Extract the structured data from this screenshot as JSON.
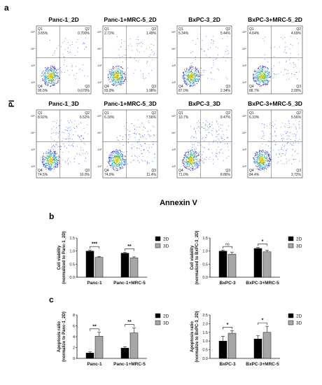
{
  "panel_letters": [
    "a",
    "b",
    "c"
  ],
  "panel_a": {
    "y_axis_label": "PI",
    "x_axis_label": "Annexin V",
    "plots": [
      {
        "title": "Panc-1_2D",
        "q1": "Q1",
        "q2": "Q2",
        "q3": "Q3",
        "q4": "Q4",
        "q1v": "3.65%",
        "q2v": "0.700%",
        "q3v": "0.670%",
        "q4v": "95.0%"
      },
      {
        "title": "Panc-1+MRC-5_2D",
        "q1": "Q1",
        "q2": "Q2",
        "q3": "Q3",
        "q4": "Q4",
        "q1v": "2.72%",
        "q2v": "1.49%",
        "q3v": "1.98%",
        "q4v": "93.8%"
      },
      {
        "title": "BxPC-3_2D",
        "q1": "Q1",
        "q2": "Q2",
        "q3": "Q3",
        "q4": "Q4",
        "q1v": "5.34%",
        "q2v": "5.44%",
        "q3v": "2.34%",
        "q4v": "87.0%"
      },
      {
        "title": "BxPC-3+MRC-5_2D",
        "q1": "Q1",
        "q2": "Q2",
        "q3": "Q3",
        "q4": "Q4",
        "q1v": "4.64%",
        "q2v": "4.69%",
        "q3v": "2.00%",
        "q4v": "88.7%"
      },
      {
        "title": "Panc-1_3D",
        "q1": "Q1",
        "q2": "Q2",
        "q3": "Q3",
        "q4": "Q4",
        "q1v": "8.92%",
        "q2v": "6.52%",
        "q3v": "10.0%",
        "q4v": "74.5%"
      },
      {
        "title": "Panc-1+MRC-5_3D",
        "q1": "Q1",
        "q2": "Q2",
        "q3": "Q3",
        "q4": "Q4",
        "q1v": "6.18%",
        "q2v": "7.56%",
        "q3v": "11.4%",
        "q4v": "74.8%"
      },
      {
        "title": "BxPC-3_3D",
        "q1": "Q1",
        "q2": "Q2",
        "q3": "Q3",
        "q4": "Q4",
        "q1v": "10.7%",
        "q2v": "9.47%",
        "q3v": "8.86%",
        "q4v": "71.0%"
      },
      {
        "title": "BxPC-3+MRC-5_3D",
        "q1": "Q1",
        "q2": "Q2",
        "q3": "Q3",
        "q4": "Q4",
        "q1v": "6.33%",
        "q2v": "5.56%",
        "q3v": "3.72%",
        "q4v": "84.4%"
      }
    ]
  },
  "chart_data": [
    {
      "type": "bar",
      "panel": "b",
      "ylabel_line1": "Cell viability",
      "ylabel_line2": "(normalized to Panc-1_2D)",
      "ylim": [
        0,
        1.5
      ],
      "yticks": [
        "0.0",
        "0.5",
        "1.0",
        "1.5"
      ],
      "categories": [
        "Panc-1",
        "Panc-1+MRC-5"
      ],
      "series": [
        {
          "name": "2D",
          "color": "#000000",
          "values": [
            1.0,
            0.92
          ],
          "errors": [
            0.04,
            0.03
          ]
        },
        {
          "name": "3D",
          "color": "#a6a6a6",
          "values": [
            0.76,
            0.74
          ],
          "errors": [
            0.03,
            0.04
          ]
        }
      ],
      "significance": [
        "***",
        "**"
      ],
      "legend_position": "top-right"
    },
    {
      "type": "bar",
      "panel": "b",
      "ylabel_line1": "Cell viability",
      "ylabel_line2": "(normalized to BxPC-3_2D)",
      "ylim": [
        0,
        1.5
      ],
      "yticks": [
        "0.0",
        "0.5",
        "1.0",
        "1.5"
      ],
      "categories": [
        "BxPC-3",
        "BxPC-3+MRC-5"
      ],
      "series": [
        {
          "name": "2D",
          "color": "#000000",
          "values": [
            1.0,
            1.1
          ],
          "errors": [
            0.04,
            0.04
          ]
        },
        {
          "name": "3D",
          "color": "#a6a6a6",
          "values": [
            0.88,
            0.97
          ],
          "errors": [
            0.08,
            0.06
          ]
        }
      ],
      "significance": [
        "ns",
        "*"
      ],
      "legend_position": "top-right"
    },
    {
      "type": "bar",
      "panel": "c",
      "ylabel_line1": "Apoptosis ratio",
      "ylabel_line2": "(normalize to Panc-1_2D)",
      "ylim": [
        0,
        8
      ],
      "yticks": [
        "0",
        "2",
        "4",
        "6",
        "8"
      ],
      "categories": [
        "Panc-1",
        "Panc-1+MRC-5"
      ],
      "series": [
        {
          "name": "2D",
          "color": "#000000",
          "values": [
            1.0,
            1.9
          ],
          "errors": [
            0.2,
            0.25
          ]
        },
        {
          "name": "3D",
          "color": "#a6a6a6",
          "values": [
            4.1,
            4.7
          ],
          "errors": [
            0.7,
            0.9
          ]
        }
      ],
      "significance": [
        "**",
        "**"
      ],
      "legend_position": "top-right"
    },
    {
      "type": "bar",
      "panel": "c",
      "ylabel_line1": "Apoptosis ratio",
      "ylabel_line2": "(normalize to BxPC-3_2D)",
      "ylim": [
        0,
        2.5
      ],
      "yticks": [
        "0.0",
        "0.5",
        "1.0",
        "1.5",
        "2.0",
        "2.5"
      ],
      "categories": [
        "BxPC-3",
        "BxPC-3+MRC-5"
      ],
      "series": [
        {
          "name": "2D",
          "color": "#000000",
          "values": [
            1.0,
            1.12
          ],
          "errors": [
            0.28,
            0.18
          ]
        },
        {
          "name": "3D",
          "color": "#a6a6a6",
          "values": [
            1.45,
            1.5
          ],
          "errors": [
            0.15,
            0.35
          ]
        }
      ],
      "significance": [
        "*",
        "*"
      ],
      "legend_position": "top-right"
    }
  ]
}
